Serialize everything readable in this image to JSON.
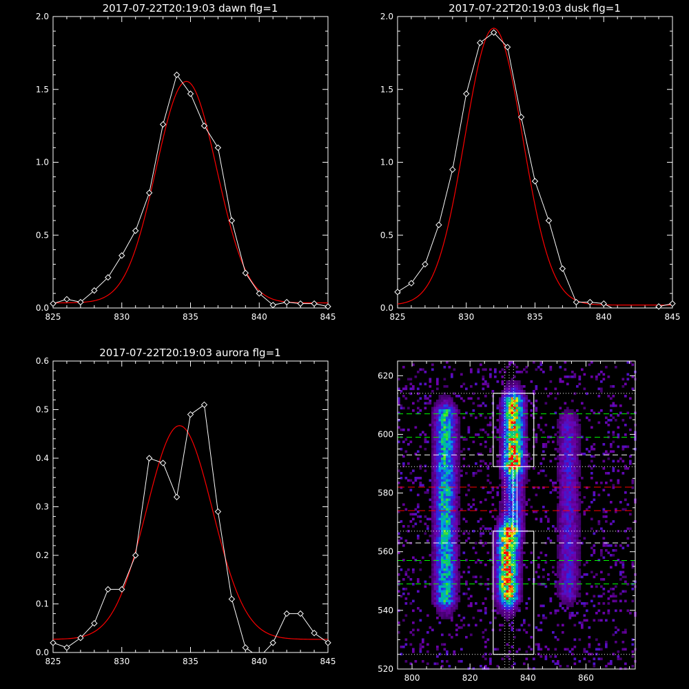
{
  "colors": {
    "background": "#000000",
    "axes": "#ffffff",
    "data": "#ffffff",
    "fit": "#ff0000",
    "green_dash": "#00ff00",
    "red_dash": "#ff0000",
    "white_dash": "#ffffff"
  },
  "chart_data": [
    {
      "type": "line",
      "title": "2017-07-22T20:19:03 dawn flg=1",
      "xlim": [
        825,
        845
      ],
      "ylim": [
        0,
        2.0
      ],
      "xticks": [
        "825",
        "830",
        "835",
        "840",
        "845"
      ],
      "yticks": [
        "0.0",
        "0.5",
        "1.0",
        "1.5",
        "2.0"
      ],
      "data_marker": "diamond",
      "data": {
        "x": [
          825,
          826,
          827,
          828,
          829,
          830,
          831,
          832,
          833,
          834,
          835,
          836,
          837,
          838,
          839,
          840,
          841,
          842,
          843,
          844,
          845
        ],
        "y": [
          0.03,
          0.06,
          0.04,
          0.12,
          0.21,
          0.36,
          0.53,
          0.79,
          1.26,
          1.6,
          1.47,
          1.25,
          1.1,
          0.6,
          0.24,
          0.1,
          0.02,
          0.04,
          0.03,
          0.03,
          0.01
        ]
      },
      "fit": {
        "model": "gaussian",
        "amplitude": 1.52,
        "center": 834.7,
        "sigma": 2.2,
        "offset": 0.035
      }
    },
    {
      "type": "line",
      "title": "2017-07-22T20:19:03 dusk flg=1",
      "xlim": [
        825,
        845
      ],
      "ylim": [
        0,
        2.0
      ],
      "xticks": [
        "825",
        "830",
        "835",
        "840",
        "845"
      ],
      "yticks": [
        "0.0",
        "0.5",
        "1.0",
        "1.5",
        "2.0"
      ],
      "data_marker": "diamond",
      "data": {
        "x": [
          825,
          826,
          827,
          828,
          829,
          830,
          831,
          832,
          833,
          834,
          835,
          836,
          837,
          838,
          839,
          840,
          841,
          842,
          843,
          844,
          845
        ],
        "y": [
          0.11,
          0.17,
          0.3,
          0.57,
          0.95,
          1.47,
          1.82,
          1.89,
          1.79,
          1.31,
          0.87,
          0.6,
          0.27,
          0.04,
          0.04,
          0.03,
          -0.02,
          -0.02,
          -0.03,
          0.01,
          0.03
        ]
      },
      "fit": {
        "model": "gaussian",
        "amplitude": 1.9,
        "center": 832.0,
        "sigma": 2.1,
        "offset": 0.02
      }
    },
    {
      "type": "line",
      "title": "2017-07-22T20:19:03 aurora flg=1",
      "xlim": [
        825,
        845
      ],
      "ylim": [
        0,
        0.6
      ],
      "xticks": [
        "825",
        "830",
        "835",
        "840",
        "845"
      ],
      "yticks": [
        "0.0",
        "0.1",
        "0.2",
        "0.3",
        "0.4",
        "0.5",
        "0.6"
      ],
      "data_marker": "diamond",
      "data": {
        "x": [
          825,
          826,
          827,
          828,
          829,
          830,
          831,
          832,
          833,
          834,
          835,
          836,
          837,
          838,
          839,
          840,
          841,
          842,
          843,
          844,
          845
        ],
        "y": [
          0.02,
          0.01,
          0.03,
          0.06,
          0.13,
          0.13,
          0.2,
          0.4,
          0.39,
          0.32,
          0.49,
          0.51,
          0.29,
          0.11,
          0.01,
          -0.01,
          0.02,
          0.08,
          0.08,
          0.04,
          0.02
        ]
      },
      "fit": {
        "model": "gaussian",
        "amplitude": 0.44,
        "center": 834.2,
        "sigma": 2.4,
        "offset": 0.027
      }
    },
    {
      "type": "heatmap",
      "title": "",
      "xlim": [
        795,
        877
      ],
      "ylim": [
        520,
        625
      ],
      "xticks": [
        "800",
        "820",
        "840",
        "860"
      ],
      "yticks": [
        "520",
        "540",
        "560",
        "580",
        "600",
        "620"
      ],
      "colormap": "rainbow on black (purple-blue-green-yellow-red)",
      "bright_columns": [
        {
          "x": 811.5,
          "ybottom": 543,
          "ytop": 608,
          "strength": 0.6
        },
        {
          "x": 833.0,
          "ybottom": 544,
          "ytop": 567,
          "strength": 1.0
        },
        {
          "x": 835.0,
          "ybottom": 589,
          "ytop": 612,
          "strength": 0.9
        },
        {
          "x": 835.0,
          "ybottom": 567,
          "ytop": 589,
          "strength": 0.35
        },
        {
          "x": 854.0,
          "ybottom": 545,
          "ytop": 605,
          "strength": 0.25
        }
      ],
      "boxes": [
        {
          "x0": 828,
          "x1": 842,
          "y0": 589,
          "y1": 614
        },
        {
          "x0": 828,
          "x1": 842,
          "y0": 525,
          "y1": 567
        }
      ],
      "vertical_lines": [
        832,
        833.5,
        835
      ],
      "dotted_hlines": [
        614,
        589,
        567,
        525
      ],
      "green_dashed_hlines": [
        607,
        599,
        557,
        549
      ],
      "white_dashed_hlines": [
        593,
        563
      ],
      "red_dashed_hlines": [
        582,
        574
      ]
    }
  ]
}
